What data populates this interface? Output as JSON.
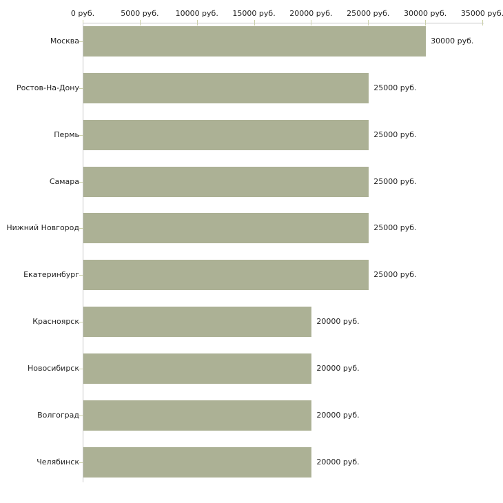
{
  "chart_data": {
    "type": "bar",
    "orientation": "horizontal",
    "title": "",
    "xlabel": "",
    "ylabel": "",
    "unit": "руб.",
    "xlim": [
      0,
      35000
    ],
    "grid": false,
    "legend": "none",
    "x_ticks": [
      {
        "value": 0,
        "label": "0 руб."
      },
      {
        "value": 5000,
        "label": "5000 руб."
      },
      {
        "value": 10000,
        "label": "10000 руб."
      },
      {
        "value": 15000,
        "label": "15000 руб."
      },
      {
        "value": 20000,
        "label": "20000 руб."
      },
      {
        "value": 25000,
        "label": "25000 руб."
      },
      {
        "value": 30000,
        "label": "30000 руб."
      },
      {
        "value": 35000,
        "label": "35000 руб."
      }
    ],
    "categories": [
      "Москва",
      "Ростов-На-Дону",
      "Пермь",
      "Самара",
      "Нижний Новгород",
      "Екатеринбург",
      "Красноярск",
      "Новосибирск",
      "Волгоград",
      "Челябинск"
    ],
    "values": [
      30000,
      25000,
      25000,
      25000,
      25000,
      25000,
      20000,
      20000,
      20000,
      20000
    ],
    "value_labels": [
      "30000 руб.",
      "25000 руб.",
      "25000 руб.",
      "25000 руб.",
      "25000 руб.",
      "25000 руб.",
      "20000 руб.",
      "20000 руб.",
      "20000 руб.",
      "20000 руб."
    ],
    "colors": {
      "bar": "#acb195",
      "axis_line": "#c6c6c6",
      "tick_mark": "#ccd1a6",
      "text": "#222222",
      "background": "#ffffff"
    }
  }
}
